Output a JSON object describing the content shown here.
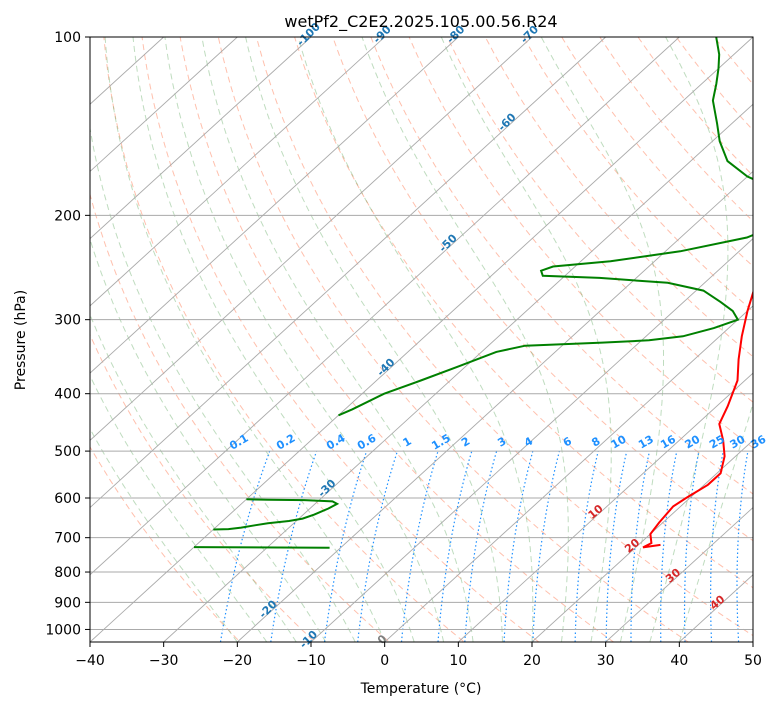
{
  "chart_data": {
    "type": "skew-t",
    "title": "wetPf2_C2E2.2025.105.00.56.R24",
    "xlabel": "Temperature (°C)",
    "ylabel": "Pressure (hPa)",
    "xlim": [
      -40,
      50
    ],
    "ylim": [
      1050,
      100
    ],
    "y_scale": "log",
    "x_ticks": [
      "−40",
      "−30",
      "−20",
      "−10",
      "0",
      "10",
      "20",
      "30",
      "40",
      "50"
    ],
    "x_tick_values": [
      -40,
      -30,
      -20,
      -10,
      0,
      10,
      20,
      30,
      40,
      50
    ],
    "y_ticks": [
      "100",
      "200",
      "300",
      "400",
      "500",
      "600",
      "700",
      "800",
      "900",
      "1000"
    ],
    "y_tick_values": [
      100,
      200,
      300,
      400,
      500,
      600,
      700,
      800,
      900,
      1000
    ],
    "grid": true,
    "colors": {
      "temperature": "#ff0000",
      "dewpoint": "#008000",
      "dry_adiabat": "#ff8c69",
      "moist_adiabat": "#5fa85f",
      "mixing_ratio": "#1e90ff",
      "isotherm_label": "#1f77b4",
      "adiabat_label": "#d62728",
      "grid": "#aaaaaa"
    },
    "series": [
      {
        "key": "temperature",
        "points": [
          [
            23,
            720
          ],
          [
            21,
            727
          ],
          [
            21.5,
            715
          ],
          [
            20,
            690
          ],
          [
            19.5,
            660
          ],
          [
            19,
            620
          ],
          [
            19.5,
            600
          ],
          [
            20.5,
            570
          ],
          [
            20.5,
            545
          ],
          [
            18.5,
            510
          ],
          [
            16,
            480
          ],
          [
            13,
            450
          ],
          [
            11.5,
            420
          ],
          [
            9,
            380
          ],
          [
            6,
            350
          ],
          [
            3,
            320
          ],
          [
            0,
            290
          ],
          [
            -3,
            260
          ],
          [
            -5,
            230
          ],
          [
            -7,
            200
          ],
          [
            -8.5,
            180
          ],
          [
            -10,
            160
          ],
          [
            -12,
            140
          ],
          [
            -15,
            125
          ],
          [
            -20,
            110
          ],
          [
            -24.5,
            100
          ]
        ]
      },
      {
        "key": "dewpoint",
        "segments": [
          [
            [
              -21.5,
              728
            ],
            [
              -25,
              727.5
            ],
            [
              -40,
              726
            ]
          ],
          [
            [
              -40,
              678
            ],
            [
              -38,
              677
            ],
            [
              -36.5,
              673
            ],
            [
              -35,
              667
            ],
            [
              -33.5,
              662
            ],
            [
              -31,
              656
            ],
            [
              -29.5,
              650
            ],
            [
              -28.5,
              640
            ],
            [
              -27.5,
              625
            ],
            [
              -27,
              614
            ],
            [
              -28,
              608
            ],
            [
              -32,
              605
            ],
            [
              -37,
              604
            ],
            [
              -40,
              603
            ]
          ],
          [
            [
              -40,
              435
            ],
            [
              -39,
              425
            ],
            [
              -37,
              400
            ],
            [
              -34,
              380
            ],
            [
              -31,
              360
            ],
            [
              -28,
              340
            ],
            [
              -25,
              332
            ],
            [
              -15,
              328
            ],
            [
              -9,
              325
            ],
            [
              -5,
              320
            ],
            [
              -2,
              310
            ],
            [
              0,
              300
            ],
            [
              -2,
              290
            ],
            [
              -5,
              280
            ],
            [
              -9,
              268
            ],
            [
              -15,
              260
            ],
            [
              -25,
              255
            ],
            [
              -33,
              253
            ],
            [
              -34,
              248
            ],
            [
              -33,
              244
            ],
            [
              -26,
              239
            ],
            [
              -18,
              230
            ],
            [
              -11,
              218
            ],
            [
              -8,
              205
            ],
            [
              -7,
              196
            ],
            [
              -9,
              190
            ],
            [
              -12,
              184
            ],
            [
              -16,
              178
            ],
            [
              -20,
              172
            ],
            [
              -25,
              162
            ],
            [
              -29,
              150
            ],
            [
              -32,
              140
            ],
            [
              -36,
              128
            ],
            [
              -38,
              120
            ],
            [
              -40,
              113
            ],
            [
              -42,
              107
            ],
            [
              -45,
              100
            ]
          ]
        ]
      }
    ],
    "mixing_ratio_labels": [
      "0.1",
      "0.2",
      "0.4",
      "0.6",
      "1",
      "1.5",
      "2",
      "3",
      "4",
      "6",
      "8",
      "10",
      "13",
      "16",
      "20",
      "25",
      "30",
      "36"
    ],
    "isotherm_labels": [
      "-100",
      "-90",
      "-80",
      "-70",
      "-60",
      "-50",
      "-40",
      "-30",
      "-20",
      "-10",
      "0"
    ],
    "dry_adiabat_labels": [
      "10",
      "20",
      "30",
      "40"
    ]
  }
}
